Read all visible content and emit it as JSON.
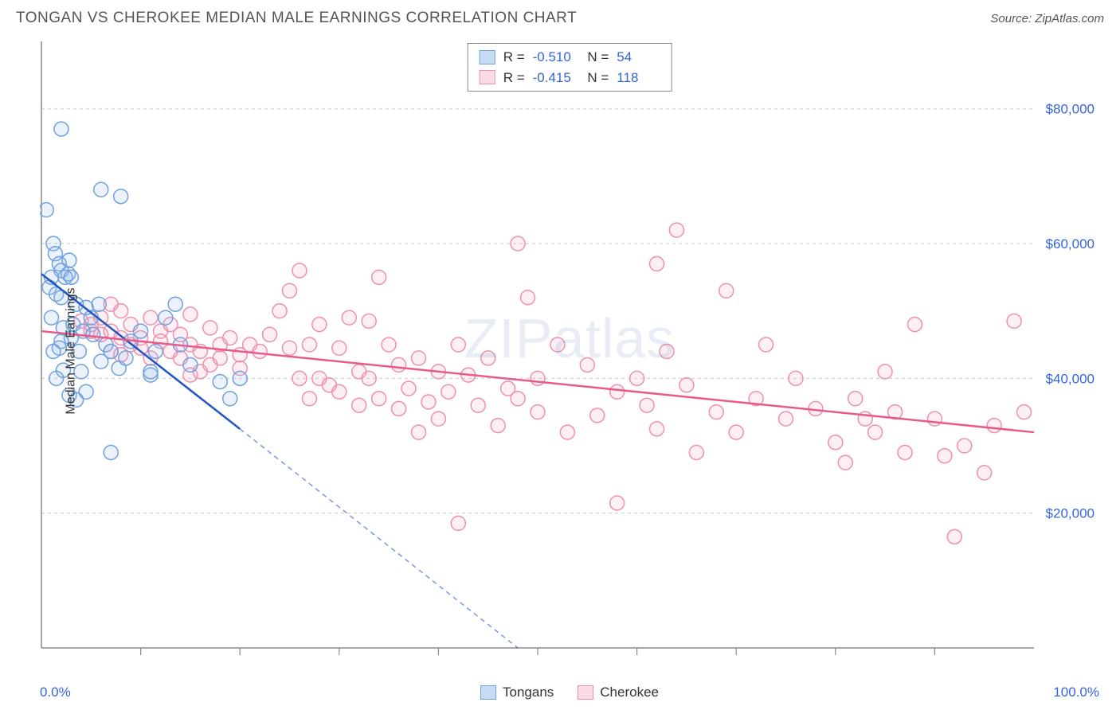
{
  "header": {
    "title": "TONGAN VS CHEROKEE MEDIAN MALE EARNINGS CORRELATION CHART",
    "source_prefix": "Source: ",
    "source_name": "ZipAtlas.com"
  },
  "watermark": "ZIPatlas",
  "chart": {
    "type": "scatter",
    "ylabel": "Median Male Earnings",
    "xlim": [
      0,
      100
    ],
    "ylim": [
      0,
      90000
    ],
    "x_ticks_minor": [
      10,
      20,
      30,
      40,
      50,
      60,
      70,
      80,
      90
    ],
    "x_labels": [
      {
        "v": 0,
        "t": "0.0%"
      },
      {
        "v": 100,
        "t": "100.0%"
      }
    ],
    "y_gridlines": [
      20000,
      40000,
      60000,
      80000
    ],
    "y_labels": [
      {
        "v": 20000,
        "t": "$20,000"
      },
      {
        "v": 40000,
        "t": "$40,000"
      },
      {
        "v": 60000,
        "t": "$60,000"
      },
      {
        "v": 80000,
        "t": "$80,000"
      }
    ],
    "background_color": "#ffffff",
    "grid_color": "#d9d9d9",
    "axis_color": "#888888",
    "label_color": "#3366dd",
    "marker_radius": 9,
    "marker_stroke_width": 1.5,
    "marker_fill_opacity": 0.18,
    "trend_line_width": 2.5,
    "trend_dash": "6,5"
  },
  "series": [
    {
      "name": "Tongans",
      "swatch_fill": "#c7dcf4",
      "swatch_stroke": "#6fa1df",
      "marker_stroke": "#6fa1df",
      "marker_fill": "#8fb9eb",
      "trend_color": "#1f55c4",
      "R": "-0.510",
      "N": "54",
      "trend": {
        "x1": 0,
        "y1": 55500,
        "x2": 20,
        "y2": 32500,
        "extend_to_x": 48,
        "extend_to_y": 0
      },
      "points": [
        [
          0.5,
          65000
        ],
        [
          2.0,
          77000
        ],
        [
          1.2,
          60000
        ],
        [
          1.4,
          58500
        ],
        [
          1.8,
          57000
        ],
        [
          2.0,
          56000
        ],
        [
          1.0,
          55000
        ],
        [
          2.4,
          55000
        ],
        [
          2.7,
          55500
        ],
        [
          0.8,
          53500
        ],
        [
          1.5,
          52500
        ],
        [
          2.0,
          52000
        ],
        [
          2.8,
          57500
        ],
        [
          3.0,
          55000
        ],
        [
          3.5,
          51000
        ],
        [
          3.2,
          48000
        ],
        [
          3.0,
          46000
        ],
        [
          1.0,
          49000
        ],
        [
          2.2,
          47500
        ],
        [
          2.0,
          45500
        ],
        [
          1.8,
          44500
        ],
        [
          4.5,
          50500
        ],
        [
          4.2,
          47000
        ],
        [
          3.8,
          44000
        ],
        [
          5.0,
          49000
        ],
        [
          5.8,
          51000
        ],
        [
          6.0,
          68000
        ],
        [
          8.0,
          67000
        ],
        [
          5.2,
          46500
        ],
        [
          6.5,
          45000
        ],
        [
          6.0,
          42500
        ],
        [
          4.0,
          41000
        ],
        [
          2.2,
          41200
        ],
        [
          7.0,
          44000
        ],
        [
          7.8,
          41500
        ],
        [
          8.5,
          43000
        ],
        [
          9.0,
          45500
        ],
        [
          10.0,
          47000
        ],
        [
          11.0,
          40500
        ],
        [
          12.5,
          49000
        ],
        [
          13.5,
          51000
        ],
        [
          14.0,
          45000
        ],
        [
          15.0,
          42000
        ],
        [
          11.5,
          44000
        ],
        [
          11.0,
          41000
        ],
        [
          1.5,
          40000
        ],
        [
          2.8,
          37500
        ],
        [
          18.0,
          39500
        ],
        [
          19.0,
          37000
        ],
        [
          20.0,
          40000
        ],
        [
          4.5,
          38000
        ],
        [
          7.0,
          29000
        ],
        [
          3.5,
          36800
        ],
        [
          1.2,
          44000
        ]
      ]
    },
    {
      "name": "Cherokee",
      "swatch_fill": "#fcdce4",
      "swatch_stroke": "#ef8fb0",
      "marker_stroke": "#ef8fb0",
      "marker_fill": "#f5a9c2",
      "trend_color": "#e75b8a",
      "R": "-0.415",
      "N": "118",
      "trend": {
        "x1": 0,
        "y1": 47000,
        "x2": 100,
        "y2": 32000
      },
      "points": [
        [
          4,
          48500
        ],
        [
          5,
          48000
        ],
        [
          5,
          47000
        ],
        [
          6,
          49000
        ],
        [
          6,
          46500
        ],
        [
          7,
          51000
        ],
        [
          7,
          47000
        ],
        [
          7,
          44000
        ],
        [
          8,
          50000
        ],
        [
          8,
          46000
        ],
        [
          8,
          43500
        ],
        [
          9,
          48000
        ],
        [
          9,
          45000
        ],
        [
          10,
          46000
        ],
        [
          10,
          44500
        ],
        [
          11,
          49000
        ],
        [
          11,
          43000
        ],
        [
          12,
          47000
        ],
        [
          12,
          45500
        ],
        [
          13,
          48000
        ],
        [
          13,
          44000
        ],
        [
          14,
          46500
        ],
        [
          14,
          43000
        ],
        [
          15,
          49500
        ],
        [
          15,
          45000
        ],
        [
          15,
          40500
        ],
        [
          16,
          44000
        ],
        [
          16,
          41000
        ],
        [
          17,
          47500
        ],
        [
          17,
          42000
        ],
        [
          18,
          45000
        ],
        [
          18,
          43000
        ],
        [
          19,
          46000
        ],
        [
          20,
          43500
        ],
        [
          20,
          41500
        ],
        [
          21,
          45000
        ],
        [
          22,
          44000
        ],
        [
          23,
          46500
        ],
        [
          24,
          50000
        ],
        [
          25,
          53000
        ],
        [
          25,
          44500
        ],
        [
          26,
          56000
        ],
        [
          26,
          40000
        ],
        [
          27,
          45000
        ],
        [
          27,
          37000
        ],
        [
          28,
          48000
        ],
        [
          28,
          40000
        ],
        [
          29,
          39000
        ],
        [
          30,
          44500
        ],
        [
          30,
          38000
        ],
        [
          31,
          49000
        ],
        [
          32,
          41000
        ],
        [
          32,
          36000
        ],
        [
          33,
          48500
        ],
        [
          33,
          40000
        ],
        [
          34,
          37000
        ],
        [
          34,
          55000
        ],
        [
          35,
          45000
        ],
        [
          36,
          42000
        ],
        [
          36,
          35500
        ],
        [
          37,
          38500
        ],
        [
          38,
          43000
        ],
        [
          38,
          32000
        ],
        [
          39,
          36500
        ],
        [
          40,
          41000
        ],
        [
          40,
          34000
        ],
        [
          41,
          38000
        ],
        [
          42,
          18500
        ],
        [
          42,
          45000
        ],
        [
          43,
          40500
        ],
        [
          44,
          36000
        ],
        [
          45,
          43000
        ],
        [
          46,
          33000
        ],
        [
          47,
          38500
        ],
        [
          48,
          60000
        ],
        [
          48,
          37000
        ],
        [
          49,
          52000
        ],
        [
          50,
          40000
        ],
        [
          50,
          35000
        ],
        [
          52,
          45000
        ],
        [
          53,
          32000
        ],
        [
          55,
          42000
        ],
        [
          56,
          34500
        ],
        [
          58,
          21500
        ],
        [
          58,
          38000
        ],
        [
          60,
          40000
        ],
        [
          61,
          36000
        ],
        [
          62,
          32500
        ],
        [
          62,
          57000
        ],
        [
          63,
          44000
        ],
        [
          64,
          62000
        ],
        [
          65,
          39000
        ],
        [
          66,
          29000
        ],
        [
          68,
          35000
        ],
        [
          69,
          53000
        ],
        [
          70,
          32000
        ],
        [
          72,
          37000
        ],
        [
          73,
          45000
        ],
        [
          75,
          34000
        ],
        [
          76,
          40000
        ],
        [
          78,
          35500
        ],
        [
          80,
          30500
        ],
        [
          81,
          27500
        ],
        [
          82,
          37000
        ],
        [
          83,
          34000
        ],
        [
          84,
          32000
        ],
        [
          85,
          41000
        ],
        [
          86,
          35000
        ],
        [
          87,
          29000
        ],
        [
          88,
          48000
        ],
        [
          90,
          34000
        ],
        [
          91,
          28500
        ],
        [
          92,
          16500
        ],
        [
          93,
          30000
        ],
        [
          95,
          26000
        ],
        [
          96,
          33000
        ],
        [
          98,
          48500
        ],
        [
          99,
          35000
        ]
      ]
    }
  ],
  "legend": {
    "items": [
      {
        "label": "Tongans"
      },
      {
        "label": "Cherokee"
      }
    ]
  }
}
